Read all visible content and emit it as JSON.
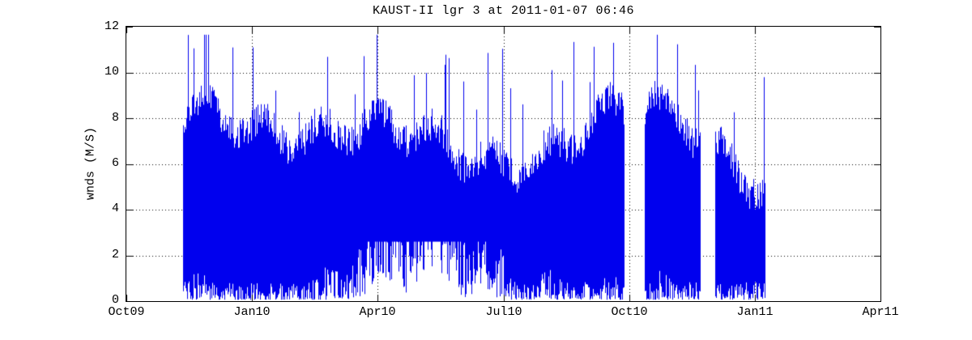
{
  "figure": {
    "background": "#ffffff",
    "axis_color": "#000000",
    "tick_label_color": "#000000"
  },
  "chart_data": {
    "type": "line",
    "title": "KAUST-II lgr 3 at 2011-01-07 06:46",
    "ylabel": "wnds (M/S)",
    "xlabel": "",
    "ylim": [
      0,
      12
    ],
    "ytick_values": [
      0,
      2,
      4,
      6,
      8,
      10,
      12
    ],
    "ytick_labels": [
      "0",
      "2",
      "4",
      "6",
      "8",
      "10",
      "12"
    ],
    "xtick_labels": [
      "Oct09",
      "Jan10",
      "Apr10",
      "Jul10",
      "Oct10",
      "Jan11",
      "Apr11"
    ],
    "x_start": "2009-10-01",
    "x_end": "2011-04-01",
    "grid": {
      "style": "dotted",
      "color": "#000000",
      "on": true
    },
    "box": true,
    "tick_direction": "in",
    "legend": null,
    "series": [
      {
        "name": "wnds",
        "color": "#0000ee",
        "line_width": 1,
        "segments": [
          {
            "start": "2009-11-11",
            "end": "2010-09-27"
          },
          {
            "start": "2010-10-12",
            "end": "2010-11-21"
          },
          {
            "start": "2010-12-02",
            "end": "2011-01-07"
          }
        ],
        "stats": {
          "min": 0.05,
          "max": 11.6,
          "mean": 3.8,
          "typical_low": 0.6,
          "typical_high": 7.5
        }
      }
    ],
    "render": {
      "seed": 20110107,
      "envelope_per_pixel": true
    }
  }
}
